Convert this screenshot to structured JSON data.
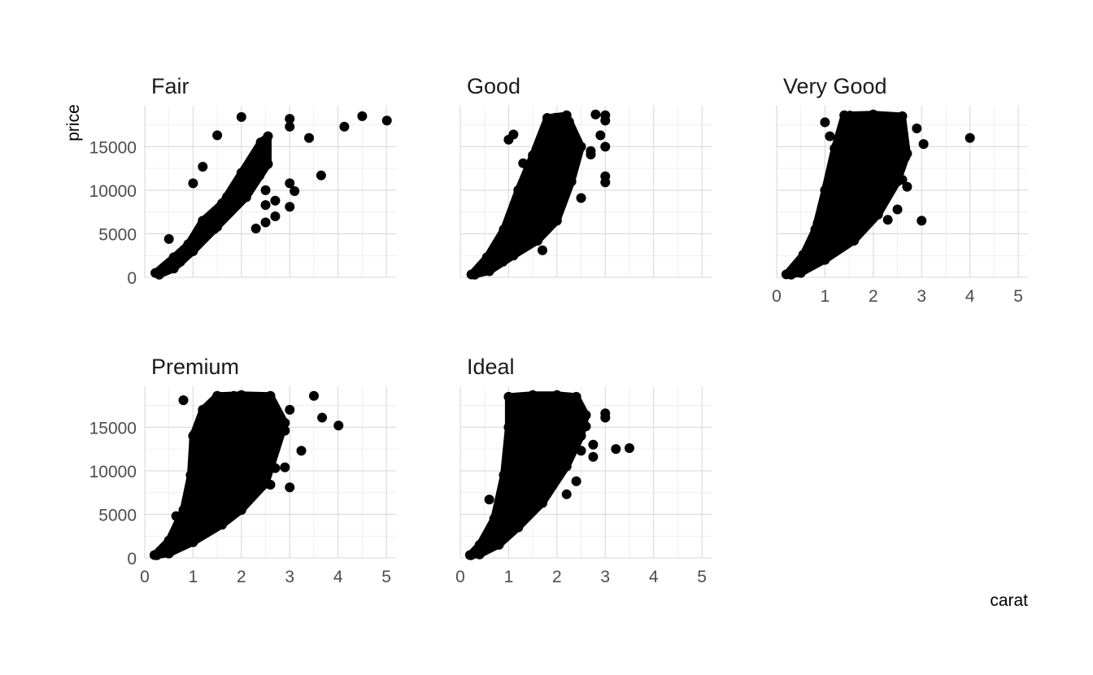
{
  "chart_data": {
    "type": "scatter",
    "xlabel": "carat",
    "ylabel": "price",
    "xlim": [
      0,
      5.2
    ],
    "ylim": [
      0,
      19700
    ],
    "x_ticks": [
      0,
      1,
      2,
      3,
      4,
      5
    ],
    "y_ticks": [
      0,
      5000,
      10000,
      15000
    ],
    "grid": true,
    "point_color": "#000000",
    "panels": [
      {
        "name": "Fair",
        "outliers": [
          [
            4.5,
            18500
          ],
          [
            5.01,
            18000
          ],
          [
            4.13,
            17300
          ],
          [
            3.4,
            16000
          ],
          [
            3.65,
            11700
          ],
          [
            3.0,
            18200
          ],
          [
            3.0,
            17300
          ],
          [
            3.0,
            10800
          ],
          [
            3.1,
            9900
          ],
          [
            3.0,
            8100
          ],
          [
            2.7,
            8800
          ],
          [
            2.5,
            10000
          ],
          [
            2.5,
            8300
          ],
          [
            2.5,
            6300
          ],
          [
            2.7,
            7000
          ],
          [
            2.0,
            18400
          ],
          [
            1.5,
            16300
          ],
          [
            1.2,
            12700
          ],
          [
            1.0,
            10800
          ],
          [
            0.5,
            4400
          ],
          [
            2.3,
            5600
          ]
        ],
        "core": [
          [
            0.22,
            500
          ],
          [
            0.6,
            2300
          ],
          [
            0.9,
            3800
          ],
          [
            1.2,
            6500
          ],
          [
            1.6,
            8500
          ],
          [
            2.0,
            12000
          ],
          [
            2.4,
            15500
          ],
          [
            2.55,
            16200
          ],
          [
            2.55,
            13000
          ],
          [
            2.1,
            9200
          ],
          [
            1.5,
            5800
          ],
          [
            1.0,
            3000
          ],
          [
            0.6,
            1000
          ],
          [
            0.3,
            300
          ]
        ]
      },
      {
        "name": "Good",
        "outliers": [
          [
            3.0,
            18600
          ],
          [
            3.0,
            18000
          ],
          [
            3.0,
            15000
          ],
          [
            3.0,
            11600
          ],
          [
            3.0,
            10900
          ],
          [
            2.8,
            18700
          ],
          [
            2.9,
            16300
          ],
          [
            2.5,
            9100
          ],
          [
            1.0,
            15800
          ],
          [
            1.1,
            16400
          ],
          [
            1.3,
            13100
          ],
          [
            1.7,
            3100
          ],
          [
            2.7,
            14500
          ],
          [
            2.7,
            14100
          ]
        ],
        "core": [
          [
            0.23,
            330
          ],
          [
            0.55,
            2300
          ],
          [
            0.9,
            5500
          ],
          [
            1.2,
            10000
          ],
          [
            1.5,
            14000
          ],
          [
            1.8,
            18300
          ],
          [
            2.2,
            18600
          ],
          [
            2.5,
            15000
          ],
          [
            2.3,
            11000
          ],
          [
            2.0,
            6500
          ],
          [
            1.6,
            4200
          ],
          [
            1.1,
            2500
          ],
          [
            0.6,
            700
          ],
          [
            0.3,
            300
          ]
        ]
      },
      {
        "name": "Very Good",
        "outliers": [
          [
            4.0,
            16000
          ],
          [
            3.04,
            15300
          ],
          [
            3.0,
            6500
          ],
          [
            2.6,
            11200
          ],
          [
            2.7,
            10400
          ],
          [
            2.9,
            17100
          ],
          [
            2.5,
            7800
          ],
          [
            2.3,
            6600
          ],
          [
            1.0,
            17800
          ],
          [
            1.1,
            16200
          ]
        ],
        "core": [
          [
            0.2,
            340
          ],
          [
            0.55,
            2600
          ],
          [
            0.8,
            5500
          ],
          [
            1.0,
            10000
          ],
          [
            1.2,
            14800
          ],
          [
            1.4,
            18600
          ],
          [
            2.0,
            18700
          ],
          [
            2.6,
            18500
          ],
          [
            2.7,
            14200
          ],
          [
            2.5,
            11000
          ],
          [
            2.1,
            7200
          ],
          [
            1.6,
            4200
          ],
          [
            1.0,
            2000
          ],
          [
            0.5,
            500
          ],
          [
            0.3,
            300
          ]
        ]
      },
      {
        "name": "Premium",
        "outliers": [
          [
            4.01,
            15200
          ],
          [
            3.67,
            16100
          ],
          [
            3.5,
            18600
          ],
          [
            3.24,
            12300
          ],
          [
            3.0,
            8100
          ],
          [
            3.0,
            17000
          ],
          [
            2.9,
            10400
          ],
          [
            2.9,
            14600
          ],
          [
            2.7,
            10300
          ],
          [
            2.6,
            8400
          ],
          [
            0.8,
            18100
          ],
          [
            0.65,
            4800
          ]
        ],
        "core": [
          [
            0.2,
            330
          ],
          [
            0.5,
            2000
          ],
          [
            0.8,
            5500
          ],
          [
            0.95,
            9500
          ],
          [
            1.0,
            14000
          ],
          [
            1.2,
            17000
          ],
          [
            1.5,
            18600
          ],
          [
            2.0,
            18700
          ],
          [
            2.6,
            18600
          ],
          [
            2.9,
            15500
          ],
          [
            2.5,
            8500
          ],
          [
            2.0,
            5500
          ],
          [
            1.6,
            3800
          ],
          [
            1.0,
            1800
          ],
          [
            0.5,
            500
          ],
          [
            0.25,
            300
          ]
        ]
      },
      {
        "name": "Ideal",
        "outliers": [
          [
            3.5,
            12600
          ],
          [
            3.22,
            12500
          ],
          [
            3.0,
            16600
          ],
          [
            3.0,
            16100
          ],
          [
            2.75,
            11600
          ],
          [
            2.75,
            13000
          ],
          [
            2.5,
            12300
          ],
          [
            2.2,
            7300
          ],
          [
            2.4,
            8800
          ],
          [
            2.6,
            15100
          ],
          [
            0.6,
            6700
          ]
        ],
        "core": [
          [
            0.2,
            330
          ],
          [
            0.4,
            1500
          ],
          [
            0.7,
            4500
          ],
          [
            0.9,
            9500
          ],
          [
            1.0,
            15000
          ],
          [
            1.0,
            18500
          ],
          [
            1.5,
            18700
          ],
          [
            2.0,
            18700
          ],
          [
            2.4,
            18500
          ],
          [
            2.6,
            16400
          ],
          [
            2.5,
            14000
          ],
          [
            2.2,
            10500
          ],
          [
            1.7,
            6300
          ],
          [
            1.2,
            3500
          ],
          [
            0.8,
            1500
          ],
          [
            0.4,
            400
          ],
          [
            0.22,
            300
          ]
        ]
      }
    ]
  }
}
